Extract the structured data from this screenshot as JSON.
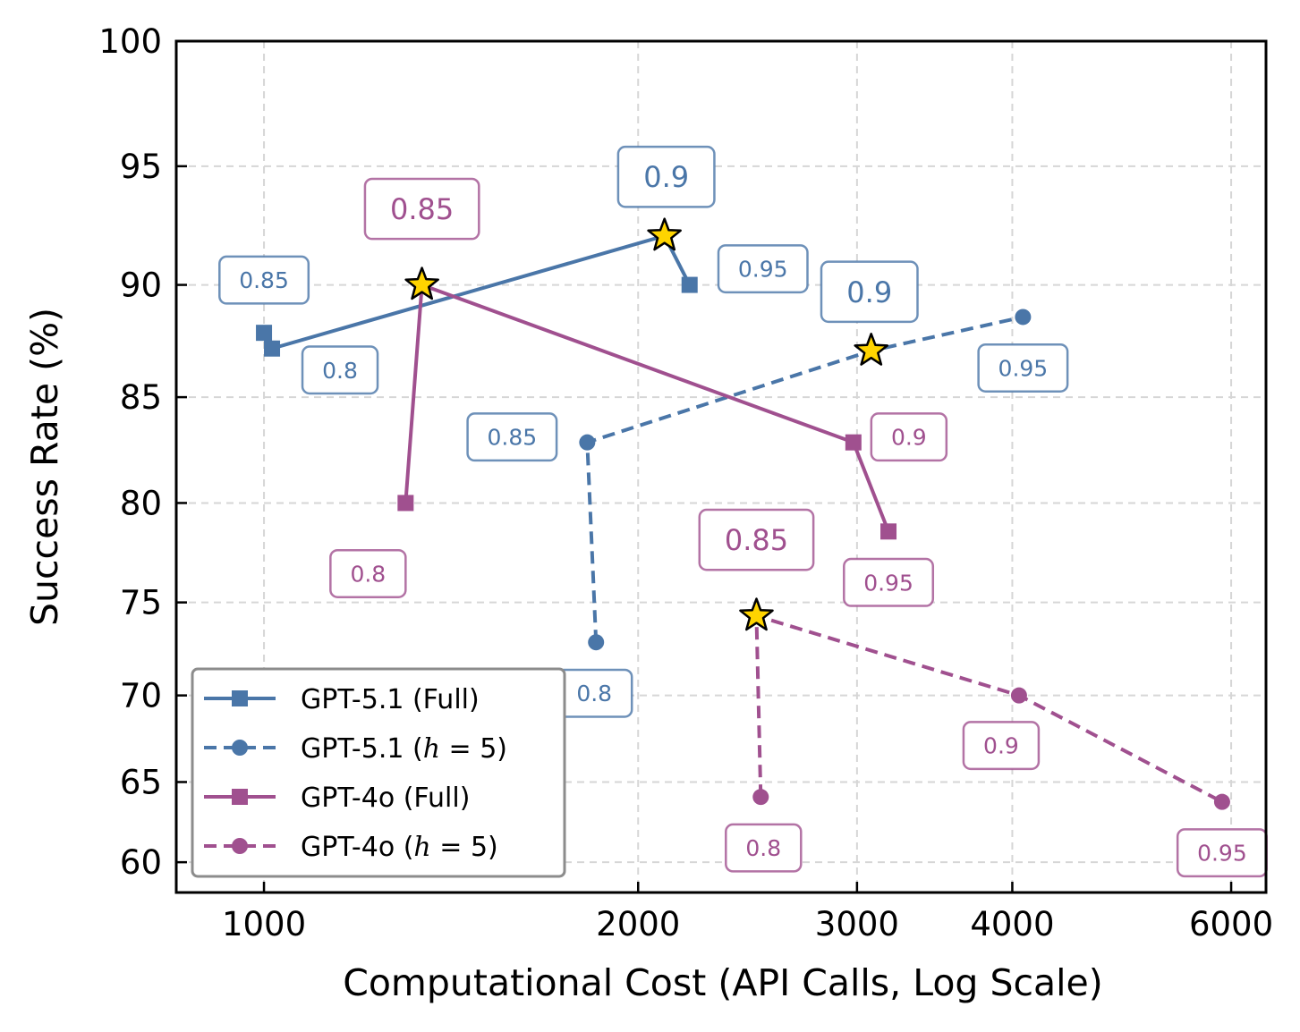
{
  "chart_data": {
    "type": "line",
    "xlabel": "Computational Cost (API Calls, Log Scale)",
    "ylabel": "Success Rate (%)",
    "xscale": "log",
    "xlim": [
      850,
      6400
    ],
    "ylim": [
      58,
      100
    ],
    "yscale": "power-2 (compressed toward bottom)",
    "xticks": [
      1000,
      2000,
      3000,
      4000,
      6000
    ],
    "xtick_labels": [
      "1000",
      "2000",
      "3000",
      "4000",
      "6000"
    ],
    "yticks": [
      60,
      65,
      70,
      75,
      80,
      85,
      90,
      95,
      100
    ],
    "ytick_labels": [
      "60",
      "65",
      "70",
      "75",
      "80",
      "85",
      "90",
      "95",
      "100"
    ],
    "grid": true,
    "legend_position": "bottom-left",
    "best_marker": "star",
    "series": [
      {
        "name": "GPT-5.1 (Full)",
        "legend_label": "GPT-5.1 (Full)",
        "color": "#4a76a8",
        "line_style": "solid",
        "marker": "square",
        "points": [
          {
            "x": 1000,
            "y": 87.9,
            "label": "0.85",
            "best": false
          },
          {
            "x": 1015,
            "y": 87.2,
            "label": "0.8",
            "best": false
          },
          {
            "x": 2100,
            "y": 92.1,
            "label": "0.9",
            "best": true
          },
          {
            "x": 2200,
            "y": 90.0,
            "label": "0.95",
            "best": false
          }
        ]
      },
      {
        "name": "GPT-5.1 (h=5)",
        "legend_label_prefix": "GPT-5.1 (",
        "legend_label_var": "h",
        "legend_label_suffix": " = 5)",
        "color": "#4a76a8",
        "line_style": "dashed",
        "marker": "circle",
        "points": [
          {
            "x": 1850,
            "y": 72.9,
            "label": "0.8",
            "best": false
          },
          {
            "x": 1820,
            "y": 82.9,
            "label": "0.85",
            "best": false
          },
          {
            "x": 3080,
            "y": 87.1,
            "label": "0.9",
            "best": true
          },
          {
            "x": 4080,
            "y": 88.6,
            "label": "0.95",
            "best": false
          }
        ]
      },
      {
        "name": "GPT-4o (Full)",
        "legend_label": "GPT-4o (Full)",
        "color": "#a0508f",
        "line_style": "solid",
        "marker": "square",
        "points": [
          {
            "x": 1300,
            "y": 80.0,
            "label": "0.8",
            "best": false
          },
          {
            "x": 1340,
            "y": 90.0,
            "label": "0.85",
            "best": true
          },
          {
            "x": 2980,
            "y": 82.9,
            "label": "0.9",
            "best": false
          },
          {
            "x": 3180,
            "y": 78.6,
            "label": "0.95",
            "best": false
          }
        ]
      },
      {
        "name": "GPT-4o (h=5)",
        "legend_label_prefix": "GPT-4o (",
        "legend_label_var": "h",
        "legend_label_suffix": " = 5)",
        "color": "#a0508f",
        "line_style": "dashed",
        "marker": "circle",
        "points": [
          {
            "x": 2510,
            "y": 64.1,
            "label": "0.8",
            "best": false
          },
          {
            "x": 2490,
            "y": 74.3,
            "label": "0.85",
            "best": true
          },
          {
            "x": 4050,
            "y": 70.0,
            "label": "0.9",
            "best": false
          },
          {
            "x": 5900,
            "y": 63.8,
            "label": "0.95",
            "best": false
          }
        ]
      }
    ]
  }
}
